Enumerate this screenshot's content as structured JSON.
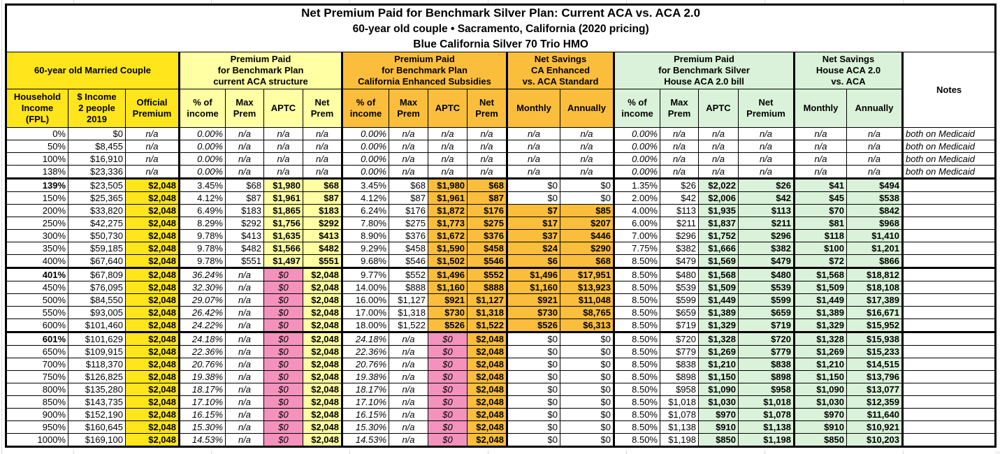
{
  "title": {
    "line1": "Net Premium Paid for Benchmark Silver Plan: Current ACA vs. ACA 2.0",
    "line2": "60-year old couple • Sacramento, California (2020 pricing)",
    "line3": "Blue California Silver 70 Trio HMO"
  },
  "colors": {
    "bright_yellow": "#FFE51C",
    "light_yellow": "#FFFFA3",
    "amber_orange": "#FBBE3C",
    "pink": "#F492BE",
    "mint_green": "#D9F2D9"
  },
  "groups": [
    {
      "id": "couple",
      "label": "60-year old Married Couple",
      "span": 3,
      "color": "yellow"
    },
    {
      "id": "aca",
      "label": "Premium Paid\nfor Benchmark Plan\ncurrent ACA structure",
      "span": 4,
      "color": "lyellow"
    },
    {
      "id": "ca",
      "label": "Premium Paid\nfor Benchmark Plan\nCalifornia Enhanced Subsidies",
      "span": 4,
      "color": "orange"
    },
    {
      "id": "ca-savings",
      "label": "Net Savings\nCA Enhanced\nvs. ACA Standard",
      "span": 2,
      "color": "orange"
    },
    {
      "id": "house",
      "label": "Premium Paid\nfor Benchmark Silver\nHouse ACA 2.0 bill",
      "span": 4,
      "color": "green"
    },
    {
      "id": "house-savings",
      "label": "Net Savings\nHouse ACA 2.0\nvs. ACA",
      "span": 2,
      "color": "green"
    }
  ],
  "notes_header": "Notes",
  "column_headers": [
    {
      "key": "fpl",
      "label": "Household\nIncome\n(FPL)",
      "color": "yellow"
    },
    {
      "key": "income",
      "label": "$ Income\n2 people\n2019",
      "color": "yellow"
    },
    {
      "key": "official",
      "label": "Official\nPremium",
      "color": "yellow"
    },
    {
      "key": "aca_pct",
      "label": "% of\nincome",
      "color": "lyellow"
    },
    {
      "key": "aca_max",
      "label": "Max\nPrem",
      "color": "lyellow"
    },
    {
      "key": "aca_aptc",
      "label": "APTC",
      "color": "lyellow"
    },
    {
      "key": "aca_net",
      "label": "Net\nPrem",
      "color": "lyellow"
    },
    {
      "key": "ca_pct",
      "label": "% of\nincome",
      "color": "orange"
    },
    {
      "key": "ca_max",
      "label": "Max\nPrem",
      "color": "orange"
    },
    {
      "key": "ca_aptc",
      "label": "APTC",
      "color": "orange"
    },
    {
      "key": "ca_net",
      "label": "Net\nPrem",
      "color": "orange"
    },
    {
      "key": "ca_sav_m",
      "label": "Monthly",
      "color": "orange"
    },
    {
      "key": "ca_sav_a",
      "label": "Annually",
      "color": "orange"
    },
    {
      "key": "h_pct",
      "label": "% of\nincome",
      "color": "green"
    },
    {
      "key": "h_max",
      "label": "Max\nPrem",
      "color": "green"
    },
    {
      "key": "h_aptc",
      "label": "APTC",
      "color": "green"
    },
    {
      "key": "h_net",
      "label": "Net\nPremium",
      "color": "green"
    },
    {
      "key": "h_sav_m",
      "label": "Monthly",
      "color": "green"
    },
    {
      "key": "h_sav_a",
      "label": "Annually",
      "color": "green"
    }
  ],
  "bold_fpl_rows": [
    "139%",
    "401%",
    "601%"
  ],
  "section_break_rows": [
    "139%",
    "401%",
    "601%"
  ],
  "rows": [
    [
      "0%",
      "$0",
      "n/a",
      "0.00%",
      "n/a",
      "n/a",
      "n/a",
      "0.00%",
      "n/a",
      "n/a",
      "n/a",
      "n/a",
      "n/a",
      "0.00%",
      "n/a",
      "n/a",
      "n/a",
      "n/a",
      "n/a",
      "both on Medicaid"
    ],
    [
      "50%",
      "$8,455",
      "n/a",
      "0.00%",
      "n/a",
      "n/a",
      "n/a",
      "0.00%",
      "n/a",
      "n/a",
      "n/a",
      "n/a",
      "n/a",
      "0.00%",
      "n/a",
      "n/a",
      "n/a",
      "n/a",
      "n/a",
      "both on Medicaid"
    ],
    [
      "100%",
      "$16,910",
      "n/a",
      "0.00%",
      "n/a",
      "n/a",
      "n/a",
      "0.00%",
      "n/a",
      "n/a",
      "n/a",
      "n/a",
      "n/a",
      "0.00%",
      "n/a",
      "n/a",
      "n/a",
      "n/a",
      "n/a",
      "both on Medicaid"
    ],
    [
      "138%",
      "$23,336",
      "n/a",
      "0.00%",
      "n/a",
      "n/a",
      "n/a",
      "0.00%",
      "n/a",
      "n/a",
      "n/a",
      "n/a",
      "n/a",
      "0.00%",
      "n/a",
      "n/a",
      "n/a",
      "n/a",
      "n/a",
      "both on Medicaid"
    ],
    [
      "139%",
      "$23,505",
      "$2,048",
      "3.45%",
      "$68",
      "$1,980",
      "$68",
      "3.45%",
      "$68",
      "$1,980",
      "$68",
      "$0",
      "$0",
      "1.35%",
      "$26",
      "$2,022",
      "$26",
      "$41",
      "$494",
      ""
    ],
    [
      "150%",
      "$25,365",
      "$2,048",
      "4.12%",
      "$87",
      "$1,961",
      "$87",
      "4.12%",
      "$87",
      "$1,961",
      "$87",
      "$0",
      "$0",
      "2.00%",
      "$42",
      "$2,006",
      "$42",
      "$45",
      "$538",
      ""
    ],
    [
      "200%",
      "$33,820",
      "$2,048",
      "6.49%",
      "$183",
      "$1,865",
      "$183",
      "6.24%",
      "$176",
      "$1,872",
      "$176",
      "$7",
      "$85",
      "4.00%",
      "$113",
      "$1,935",
      "$113",
      "$70",
      "$842",
      ""
    ],
    [
      "250%",
      "$42,275",
      "$2,048",
      "8.29%",
      "$292",
      "$1,756",
      "$292",
      "7.80%",
      "$275",
      "$1,773",
      "$275",
      "$17",
      "$207",
      "6.00%",
      "$211",
      "$1,837",
      "$211",
      "$81",
      "$968",
      ""
    ],
    [
      "300%",
      "$50,730",
      "$2,048",
      "9.78%",
      "$413",
      "$1,635",
      "$413",
      "8.90%",
      "$376",
      "$1,672",
      "$376",
      "$37",
      "$446",
      "7.00%",
      "$296",
      "$1,752",
      "$296",
      "$118",
      "$1,410",
      ""
    ],
    [
      "350%",
      "$59,185",
      "$2,048",
      "9.78%",
      "$482",
      "$1,566",
      "$482",
      "9.29%",
      "$458",
      "$1,590",
      "$458",
      "$24",
      "$290",
      "7.75%",
      "$382",
      "$1,666",
      "$382",
      "$100",
      "$1,201",
      ""
    ],
    [
      "400%",
      "$67,640",
      "$2,048",
      "9.78%",
      "$551",
      "$1,497",
      "$551",
      "9.68%",
      "$546",
      "$1,502",
      "$546",
      "$6",
      "$68",
      "8.50%",
      "$479",
      "$1,569",
      "$479",
      "$72",
      "$866",
      ""
    ],
    [
      "401%",
      "$67,809",
      "$2,048",
      "36.24%",
      "n/a",
      "$0",
      "$2,048",
      "9.77%",
      "$552",
      "$1,496",
      "$552",
      "$1,496",
      "$17,951",
      "8.50%",
      "$480",
      "$1,568",
      "$480",
      "$1,568",
      "$18,812",
      ""
    ],
    [
      "450%",
      "$76,095",
      "$2,048",
      "32.30%",
      "n/a",
      "$0",
      "$2,048",
      "14.00%",
      "$888",
      "$1,160",
      "$888",
      "$1,160",
      "$13,923",
      "8.50%",
      "$539",
      "$1,509",
      "$539",
      "$1,509",
      "$18,108",
      ""
    ],
    [
      "500%",
      "$84,550",
      "$2,048",
      "29.07%",
      "n/a",
      "$0",
      "$2,048",
      "16.00%",
      "$1,127",
      "$921",
      "$1,127",
      "$921",
      "$11,048",
      "8.50%",
      "$599",
      "$1,449",
      "$599",
      "$1,449",
      "$17,389",
      ""
    ],
    [
      "550%",
      "$93,005",
      "$2,048",
      "26.42%",
      "n/a",
      "$0",
      "$2,048",
      "17.00%",
      "$1,318",
      "$730",
      "$1,318",
      "$730",
      "$8,765",
      "8.50%",
      "$659",
      "$1,389",
      "$659",
      "$1,389",
      "$16,671",
      ""
    ],
    [
      "600%",
      "$101,460",
      "$2,048",
      "24.22%",
      "n/a",
      "$0",
      "$2,048",
      "18.00%",
      "$1,522",
      "$526",
      "$1,522",
      "$526",
      "$6,313",
      "8.50%",
      "$719",
      "$1,329",
      "$719",
      "$1,329",
      "$15,952",
      ""
    ],
    [
      "601%",
      "$101,629",
      "$2,048",
      "24.18%",
      "n/a",
      "$0",
      "$2,048",
      "24.18%",
      "n/a",
      "$0",
      "$2,048",
      "$0",
      "$0",
      "8.50%",
      "$720",
      "$1,328",
      "$720",
      "$1,328",
      "$15,938",
      ""
    ],
    [
      "650%",
      "$109,915",
      "$2,048",
      "22.36%",
      "n/a",
      "$0",
      "$2,048",
      "22.36%",
      "n/a",
      "$0",
      "$2,048",
      "$0",
      "$0",
      "8.50%",
      "$779",
      "$1,269",
      "$779",
      "$1,269",
      "$15,233",
      ""
    ],
    [
      "700%",
      "$118,370",
      "$2,048",
      "20.76%",
      "n/a",
      "$0",
      "$2,048",
      "20.76%",
      "n/a",
      "$0",
      "$2,048",
      "$0",
      "$0",
      "8.50%",
      "$838",
      "$1,210",
      "$838",
      "$1,210",
      "$14,515",
      ""
    ],
    [
      "750%",
      "$126,825",
      "$2,048",
      "19.38%",
      "n/a",
      "$0",
      "$2,048",
      "19.38%",
      "n/a",
      "$0",
      "$2,048",
      "$0",
      "$0",
      "8.50%",
      "$898",
      "$1,150",
      "$898",
      "$1,150",
      "$13,796",
      ""
    ],
    [
      "800%",
      "$135,280",
      "$2,048",
      "18.17%",
      "n/a",
      "$0",
      "$2,048",
      "18.17%",
      "n/a",
      "$0",
      "$2,048",
      "$0",
      "$0",
      "8.50%",
      "$958",
      "$1,090",
      "$958",
      "$1,090",
      "$13,077",
      ""
    ],
    [
      "850%",
      "$143,735",
      "$2,048",
      "17.10%",
      "n/a",
      "$0",
      "$2,048",
      "17.10%",
      "n/a",
      "$0",
      "$2,048",
      "$0",
      "$0",
      "8.50%",
      "$1,018",
      "$1,030",
      "$1,018",
      "$1,030",
      "$12,359",
      ""
    ],
    [
      "900%",
      "$152,190",
      "$2,048",
      "16.15%",
      "n/a",
      "$0",
      "$2,048",
      "16.15%",
      "n/a",
      "$0",
      "$2,048",
      "$0",
      "$0",
      "8.50%",
      "$1,078",
      "$970",
      "$1,078",
      "$970",
      "$11,640",
      ""
    ],
    [
      "950%",
      "$160,645",
      "$2,048",
      "15.30%",
      "n/a",
      "$0",
      "$2,048",
      "15.30%",
      "n/a",
      "$0",
      "$2,048",
      "$0",
      "$0",
      "8.50%",
      "$1,138",
      "$910",
      "$1,138",
      "$910",
      "$10,921",
      ""
    ],
    [
      "1000%",
      "$169,100",
      "$2,048",
      "14.53%",
      "n/a",
      "$0",
      "$2,048",
      "14.53%",
      "n/a",
      "$0",
      "$2,048",
      "$0",
      "$0",
      "8.50%",
      "$1,198",
      "$850",
      "$1,198",
      "$850",
      "$10,203",
      ""
    ]
  ]
}
